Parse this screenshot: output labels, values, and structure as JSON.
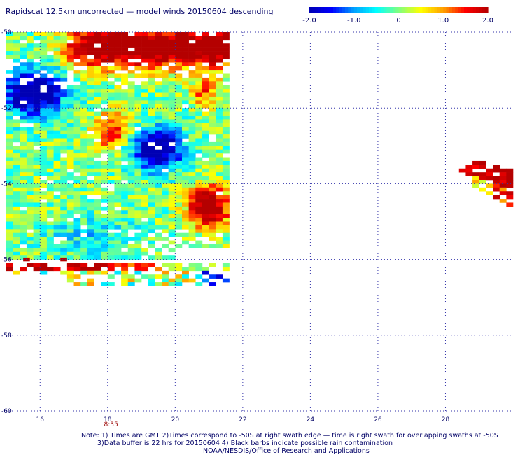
{
  "title": "Rapidscat 12.5km uncorrected — model winds 20150604 descending",
  "colorbar": {
    "vmin": -2.0,
    "vmax": 2.0,
    "ticks": [
      "-2.0",
      "-1.0",
      "0",
      "1.0",
      "2.0"
    ],
    "colors": [
      "#0000b4",
      "#0000ff",
      "#00a0ff",
      "#00ffff",
      "#80ff80",
      "#ffff00",
      "#ffa000",
      "#ff0000",
      "#b40000"
    ]
  },
  "notes": {
    "line1": "Note: 1) Times are GMT 2)Times correspond to -50S at right swath edge — time is right swath for overlapping swaths at -50S",
    "line2": "3)Data buffer is 22 hrs for 20150604 4) Black barbs indicate possible rain contamination",
    "line3": "NOAA/NESDIS/Office of Research and Applications"
  },
  "chart_data": {
    "type": "heatmap",
    "title": "Rapidscat 12.5km uncorrected — model winds 20150604 descending",
    "xlim": [
      15.0,
      30.0
    ],
    "ylim": [
      -60,
      -50
    ],
    "x_ticks": [
      "16",
      "18",
      "20",
      "22",
      "24",
      "26",
      "28"
    ],
    "y_ticks": [
      "-50",
      "-52",
      "-54",
      "-56",
      "-58",
      "-60"
    ],
    "grid": true,
    "time_label": {
      "text": "8:35",
      "x": 18.1
    },
    "colorbar_range": [
      -2.0,
      2.0
    ],
    "swath_main": {
      "lon_range": [
        15.0,
        21.5
      ],
      "lat_range": [
        -50.0,
        -56.0
      ]
    },
    "swath_strip": {
      "lon_range": [
        15.0,
        21.5
      ],
      "lat_range": [
        -56.1,
        -56.7
      ]
    },
    "swath_east": {
      "lon_range": [
        28.6,
        30.0
      ],
      "lat_range": [
        -53.3,
        -54.7
      ]
    },
    "regions": [
      {
        "area": "northern band near -50 to -51, lon 17 to 21.5",
        "value": 1.9
      },
      {
        "area": "far west near -51.5 lon 15 to 16.5",
        "value": -1.7
      },
      {
        "area": "centre near -53 lon 19 to 20",
        "value": -1.5
      },
      {
        "area": "east near -54.5 lon 20.5 to 21.5",
        "value": 1.6
      },
      {
        "area": "mid centre near -52.5 lon 17.5 to 18.5",
        "value": 1.0
      },
      {
        "area": "southern strip near -56.2",
        "value": 1.7
      },
      {
        "area": "east swath near -54",
        "value": 1.9
      }
    ]
  }
}
